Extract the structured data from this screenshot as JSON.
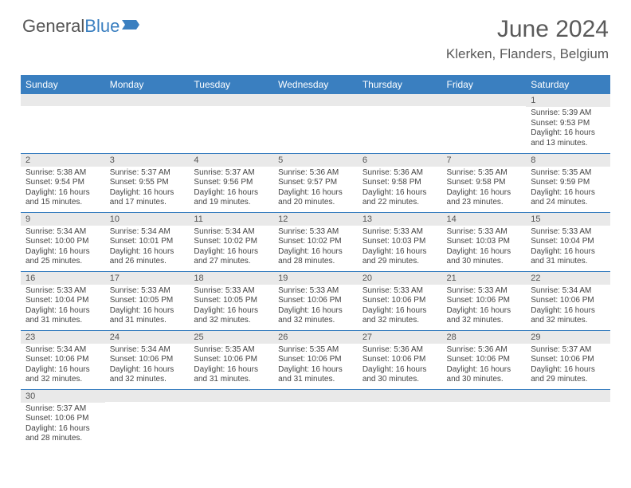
{
  "logo": {
    "text_gray": "General",
    "text_blue": "Blue"
  },
  "title": "June 2024",
  "location": "Klerken, Flanders, Belgium",
  "colors": {
    "header_bg": "#3a7fc0",
    "header_text": "#ffffff",
    "daynum_bg": "#e9e9e9",
    "border": "#3a7fc0",
    "body_text": "#444444",
    "title_text": "#5a5a5a"
  },
  "day_headers": [
    "Sunday",
    "Monday",
    "Tuesday",
    "Wednesday",
    "Thursday",
    "Friday",
    "Saturday"
  ],
  "weeks": [
    [
      {
        "n": "",
        "sr": "",
        "ss": "",
        "dl1": "",
        "dl2": ""
      },
      {
        "n": "",
        "sr": "",
        "ss": "",
        "dl1": "",
        "dl2": ""
      },
      {
        "n": "",
        "sr": "",
        "ss": "",
        "dl1": "",
        "dl2": ""
      },
      {
        "n": "",
        "sr": "",
        "ss": "",
        "dl1": "",
        "dl2": ""
      },
      {
        "n": "",
        "sr": "",
        "ss": "",
        "dl1": "",
        "dl2": ""
      },
      {
        "n": "",
        "sr": "",
        "ss": "",
        "dl1": "",
        "dl2": ""
      },
      {
        "n": "1",
        "sr": "Sunrise: 5:39 AM",
        "ss": "Sunset: 9:53 PM",
        "dl1": "Daylight: 16 hours",
        "dl2": "and 13 minutes."
      }
    ],
    [
      {
        "n": "2",
        "sr": "Sunrise: 5:38 AM",
        "ss": "Sunset: 9:54 PM",
        "dl1": "Daylight: 16 hours",
        "dl2": "and 15 minutes."
      },
      {
        "n": "3",
        "sr": "Sunrise: 5:37 AM",
        "ss": "Sunset: 9:55 PM",
        "dl1": "Daylight: 16 hours",
        "dl2": "and 17 minutes."
      },
      {
        "n": "4",
        "sr": "Sunrise: 5:37 AM",
        "ss": "Sunset: 9:56 PM",
        "dl1": "Daylight: 16 hours",
        "dl2": "and 19 minutes."
      },
      {
        "n": "5",
        "sr": "Sunrise: 5:36 AM",
        "ss": "Sunset: 9:57 PM",
        "dl1": "Daylight: 16 hours",
        "dl2": "and 20 minutes."
      },
      {
        "n": "6",
        "sr": "Sunrise: 5:36 AM",
        "ss": "Sunset: 9:58 PM",
        "dl1": "Daylight: 16 hours",
        "dl2": "and 22 minutes."
      },
      {
        "n": "7",
        "sr": "Sunrise: 5:35 AM",
        "ss": "Sunset: 9:58 PM",
        "dl1": "Daylight: 16 hours",
        "dl2": "and 23 minutes."
      },
      {
        "n": "8",
        "sr": "Sunrise: 5:35 AM",
        "ss": "Sunset: 9:59 PM",
        "dl1": "Daylight: 16 hours",
        "dl2": "and 24 minutes."
      }
    ],
    [
      {
        "n": "9",
        "sr": "Sunrise: 5:34 AM",
        "ss": "Sunset: 10:00 PM",
        "dl1": "Daylight: 16 hours",
        "dl2": "and 25 minutes."
      },
      {
        "n": "10",
        "sr": "Sunrise: 5:34 AM",
        "ss": "Sunset: 10:01 PM",
        "dl1": "Daylight: 16 hours",
        "dl2": "and 26 minutes."
      },
      {
        "n": "11",
        "sr": "Sunrise: 5:34 AM",
        "ss": "Sunset: 10:02 PM",
        "dl1": "Daylight: 16 hours",
        "dl2": "and 27 minutes."
      },
      {
        "n": "12",
        "sr": "Sunrise: 5:33 AM",
        "ss": "Sunset: 10:02 PM",
        "dl1": "Daylight: 16 hours",
        "dl2": "and 28 minutes."
      },
      {
        "n": "13",
        "sr": "Sunrise: 5:33 AM",
        "ss": "Sunset: 10:03 PM",
        "dl1": "Daylight: 16 hours",
        "dl2": "and 29 minutes."
      },
      {
        "n": "14",
        "sr": "Sunrise: 5:33 AM",
        "ss": "Sunset: 10:03 PM",
        "dl1": "Daylight: 16 hours",
        "dl2": "and 30 minutes."
      },
      {
        "n": "15",
        "sr": "Sunrise: 5:33 AM",
        "ss": "Sunset: 10:04 PM",
        "dl1": "Daylight: 16 hours",
        "dl2": "and 31 minutes."
      }
    ],
    [
      {
        "n": "16",
        "sr": "Sunrise: 5:33 AM",
        "ss": "Sunset: 10:04 PM",
        "dl1": "Daylight: 16 hours",
        "dl2": "and 31 minutes."
      },
      {
        "n": "17",
        "sr": "Sunrise: 5:33 AM",
        "ss": "Sunset: 10:05 PM",
        "dl1": "Daylight: 16 hours",
        "dl2": "and 31 minutes."
      },
      {
        "n": "18",
        "sr": "Sunrise: 5:33 AM",
        "ss": "Sunset: 10:05 PM",
        "dl1": "Daylight: 16 hours",
        "dl2": "and 32 minutes."
      },
      {
        "n": "19",
        "sr": "Sunrise: 5:33 AM",
        "ss": "Sunset: 10:06 PM",
        "dl1": "Daylight: 16 hours",
        "dl2": "and 32 minutes."
      },
      {
        "n": "20",
        "sr": "Sunrise: 5:33 AM",
        "ss": "Sunset: 10:06 PM",
        "dl1": "Daylight: 16 hours",
        "dl2": "and 32 minutes."
      },
      {
        "n": "21",
        "sr": "Sunrise: 5:33 AM",
        "ss": "Sunset: 10:06 PM",
        "dl1": "Daylight: 16 hours",
        "dl2": "and 32 minutes."
      },
      {
        "n": "22",
        "sr": "Sunrise: 5:34 AM",
        "ss": "Sunset: 10:06 PM",
        "dl1": "Daylight: 16 hours",
        "dl2": "and 32 minutes."
      }
    ],
    [
      {
        "n": "23",
        "sr": "Sunrise: 5:34 AM",
        "ss": "Sunset: 10:06 PM",
        "dl1": "Daylight: 16 hours",
        "dl2": "and 32 minutes."
      },
      {
        "n": "24",
        "sr": "Sunrise: 5:34 AM",
        "ss": "Sunset: 10:06 PM",
        "dl1": "Daylight: 16 hours",
        "dl2": "and 32 minutes."
      },
      {
        "n": "25",
        "sr": "Sunrise: 5:35 AM",
        "ss": "Sunset: 10:06 PM",
        "dl1": "Daylight: 16 hours",
        "dl2": "and 31 minutes."
      },
      {
        "n": "26",
        "sr": "Sunrise: 5:35 AM",
        "ss": "Sunset: 10:06 PM",
        "dl1": "Daylight: 16 hours",
        "dl2": "and 31 minutes."
      },
      {
        "n": "27",
        "sr": "Sunrise: 5:36 AM",
        "ss": "Sunset: 10:06 PM",
        "dl1": "Daylight: 16 hours",
        "dl2": "and 30 minutes."
      },
      {
        "n": "28",
        "sr": "Sunrise: 5:36 AM",
        "ss": "Sunset: 10:06 PM",
        "dl1": "Daylight: 16 hours",
        "dl2": "and 30 minutes."
      },
      {
        "n": "29",
        "sr": "Sunrise: 5:37 AM",
        "ss": "Sunset: 10:06 PM",
        "dl1": "Daylight: 16 hours",
        "dl2": "and 29 minutes."
      }
    ],
    [
      {
        "n": "30",
        "sr": "Sunrise: 5:37 AM",
        "ss": "Sunset: 10:06 PM",
        "dl1": "Daylight: 16 hours",
        "dl2": "and 28 minutes."
      },
      {
        "n": "",
        "sr": "",
        "ss": "",
        "dl1": "",
        "dl2": ""
      },
      {
        "n": "",
        "sr": "",
        "ss": "",
        "dl1": "",
        "dl2": ""
      },
      {
        "n": "",
        "sr": "",
        "ss": "",
        "dl1": "",
        "dl2": ""
      },
      {
        "n": "",
        "sr": "",
        "ss": "",
        "dl1": "",
        "dl2": ""
      },
      {
        "n": "",
        "sr": "",
        "ss": "",
        "dl1": "",
        "dl2": ""
      },
      {
        "n": "",
        "sr": "",
        "ss": "",
        "dl1": "",
        "dl2": ""
      }
    ]
  ]
}
